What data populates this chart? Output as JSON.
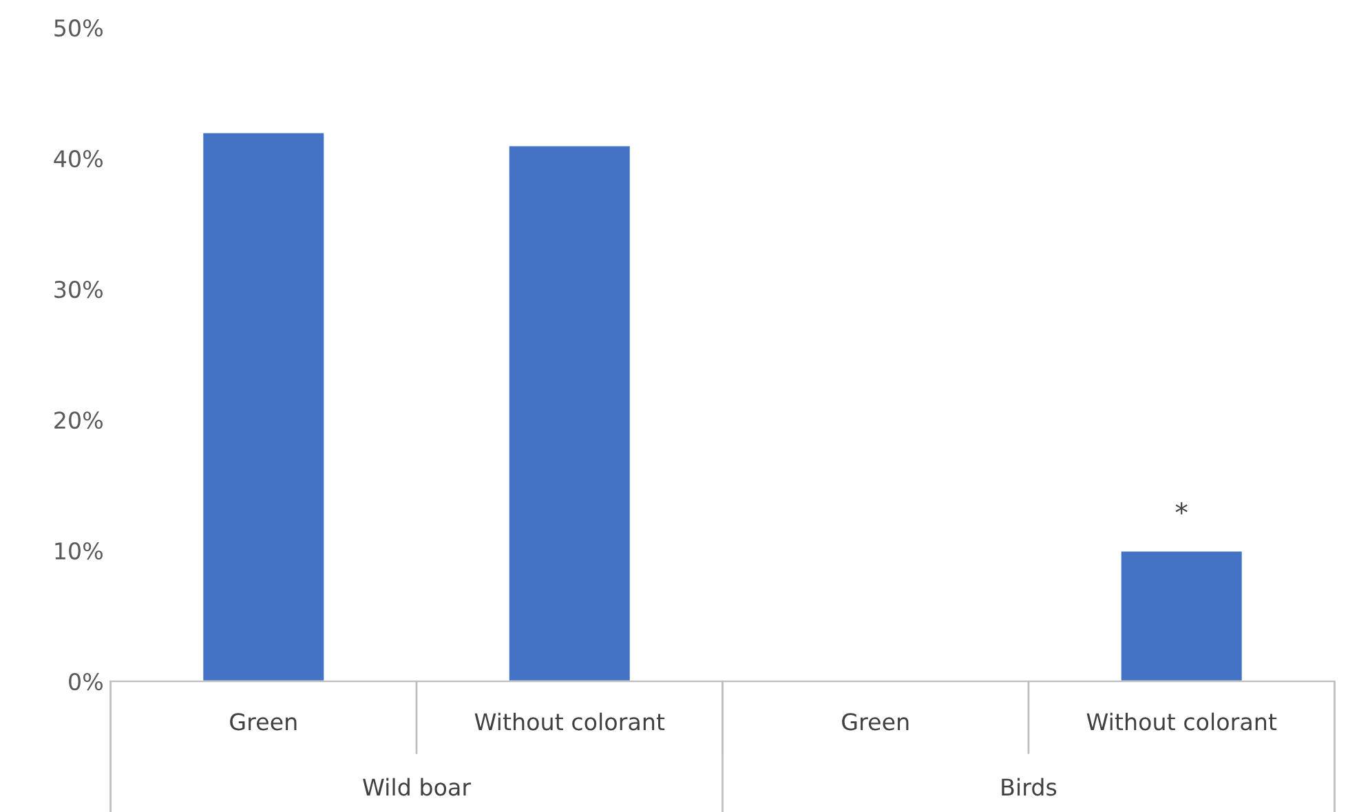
{
  "chart_data": {
    "type": "bar",
    "categories": [
      "Green",
      "Without colorant",
      "Green",
      "Without colorant"
    ],
    "values": [
      42,
      41,
      null,
      10
    ],
    "value_labels": [
      null,
      null,
      null,
      "*"
    ],
    "color": "#4472c4",
    "ylim": [
      0,
      50
    ],
    "yticks": [
      {
        "value": 0,
        "label": "0%"
      },
      {
        "value": 10,
        "label": "10%"
      },
      {
        "value": 20,
        "label": "20%"
      },
      {
        "value": 30,
        "label": "30%"
      },
      {
        "value": 40,
        "label": "40%"
      },
      {
        "value": 50,
        "label": "50%"
      }
    ],
    "grid": false,
    "legend": false,
    "annotations": [
      "Wild boar",
      "Birds"
    ]
  }
}
